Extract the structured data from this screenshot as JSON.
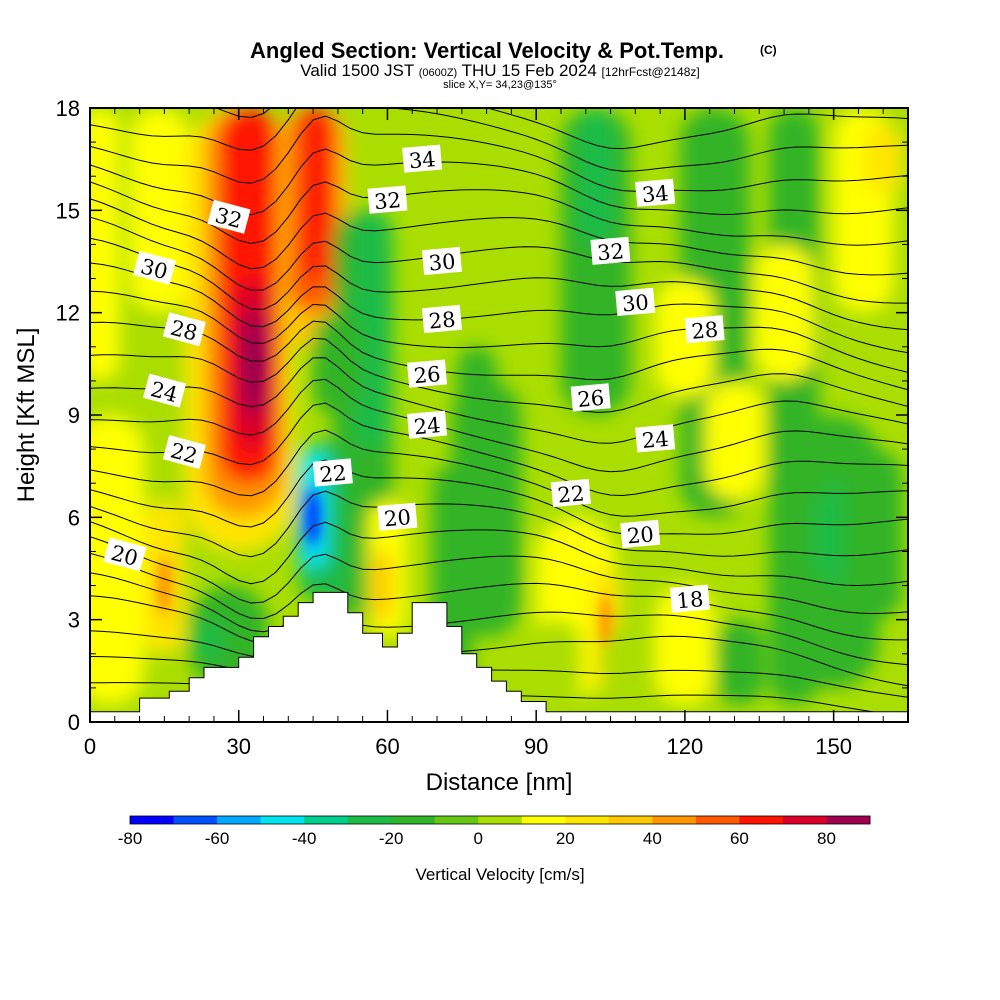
{
  "chart_data": {
    "type": "heatmap",
    "title": "Angled Section: Vertical Velocity & Pot.Temp.",
    "title_mark": "(C)",
    "subtitle": {
      "part1": "Valid 1500 JST ",
      "part2": "(0600Z)",
      "part3": " THU 15 Feb 2024 ",
      "part4": "[12hrFcst@2148z]"
    },
    "slice_text": "slice X,Y= 34,23@135°",
    "xlabel": "Distance [nm]",
    "ylabel": "Height [Kft MSL]",
    "xlim": [
      0,
      165
    ],
    "ylim": [
      0,
      18
    ],
    "x_ticks": [
      0,
      30,
      60,
      90,
      120,
      150
    ],
    "y_ticks": [
      0,
      3,
      6,
      9,
      12,
      15,
      18
    ],
    "colorbar": {
      "label": "Vertical Velocity [cm/s]",
      "ticks": [
        -80,
        -60,
        -40,
        -20,
        0,
        20,
        40,
        60,
        80
      ],
      "bounds": [
        -80,
        -70,
        -60,
        -50,
        -40,
        -30,
        -20,
        -10,
        0,
        10,
        20,
        30,
        40,
        50,
        60,
        70,
        80,
        90
      ],
      "colors": [
        "#0000ff",
        "#0050ff",
        "#00a8ff",
        "#00e6f0",
        "#00d08c",
        "#1cbc46",
        "#30b428",
        "#66c814",
        "#aade00",
        "#ffff00",
        "#ffe600",
        "#ffc800",
        "#ff9600",
        "#ff5a00",
        "#ff1400",
        "#dc0028",
        "#a00050",
        "#780078"
      ]
    },
    "potential_temperature_labels": [
      {
        "text": "34",
        "x": 67,
        "y": 16.5
      },
      {
        "text": "34",
        "x": 114,
        "y": 15.5
      },
      {
        "text": "32",
        "x": 28,
        "y": 14.8
      },
      {
        "text": "32",
        "x": 60,
        "y": 15.3
      },
      {
        "text": "32",
        "x": 105,
        "y": 13.8
      },
      {
        "text": "30",
        "x": 13,
        "y": 13.3
      },
      {
        "text": "30",
        "x": 71,
        "y": 13.5
      },
      {
        "text": "30",
        "x": 110,
        "y": 12.3
      },
      {
        "text": "28",
        "x": 19,
        "y": 11.5
      },
      {
        "text": "28",
        "x": 71,
        "y": 11.8
      },
      {
        "text": "28",
        "x": 124,
        "y": 11.5
      },
      {
        "text": "26",
        "x": 68,
        "y": 10.2
      },
      {
        "text": "26",
        "x": 101,
        "y": 9.5
      },
      {
        "text": "24",
        "x": 15,
        "y": 9.7
      },
      {
        "text": "24",
        "x": 68,
        "y": 8.7
      },
      {
        "text": "24",
        "x": 114,
        "y": 8.3
      },
      {
        "text": "22",
        "x": 19,
        "y": 7.9
      },
      {
        "text": "22",
        "x": 49,
        "y": 7.3
      },
      {
        "text": "22",
        "x": 97,
        "y": 6.7
      },
      {
        "text": "20",
        "x": 62,
        "y": 6.0
      },
      {
        "text": "20",
        "x": 7,
        "y": 4.9
      },
      {
        "text": "20",
        "x": 111,
        "y": 5.5
      },
      {
        "text": "18",
        "x": 121,
        "y": 3.6
      }
    ],
    "terrain": [
      [
        0,
        0.3
      ],
      [
        10,
        0.3
      ],
      [
        10,
        0.7
      ],
      [
        16,
        0.7
      ],
      [
        16,
        0.9
      ],
      [
        20,
        0.9
      ],
      [
        20,
        1.3
      ],
      [
        23,
        1.3
      ],
      [
        23,
        1.6
      ],
      [
        30,
        1.6
      ],
      [
        30,
        1.9
      ],
      [
        33,
        1.9
      ],
      [
        33,
        2.5
      ],
      [
        36,
        2.5
      ],
      [
        36,
        2.8
      ],
      [
        39,
        2.8
      ],
      [
        39,
        3.1
      ],
      [
        42,
        3.1
      ],
      [
        42,
        3.5
      ],
      [
        45,
        3.5
      ],
      [
        45,
        3.8
      ],
      [
        52,
        3.8
      ],
      [
        52,
        3.2
      ],
      [
        55,
        3.2
      ],
      [
        55,
        2.6
      ],
      [
        59,
        2.6
      ],
      [
        59,
        2.2
      ],
      [
        62,
        2.2
      ],
      [
        62,
        2.6
      ],
      [
        65,
        2.6
      ],
      [
        65,
        3.5
      ],
      [
        72,
        3.5
      ],
      [
        72,
        2.8
      ],
      [
        75,
        2.8
      ],
      [
        75,
        2.0
      ],
      [
        78,
        2.0
      ],
      [
        78,
        1.6
      ],
      [
        81,
        1.6
      ],
      [
        81,
        1.2
      ],
      [
        84,
        1.2
      ],
      [
        84,
        0.9
      ],
      [
        87,
        0.9
      ],
      [
        87,
        0.6
      ],
      [
        92,
        0.6
      ],
      [
        92,
        0.3
      ],
      [
        165,
        0.3
      ]
    ]
  }
}
